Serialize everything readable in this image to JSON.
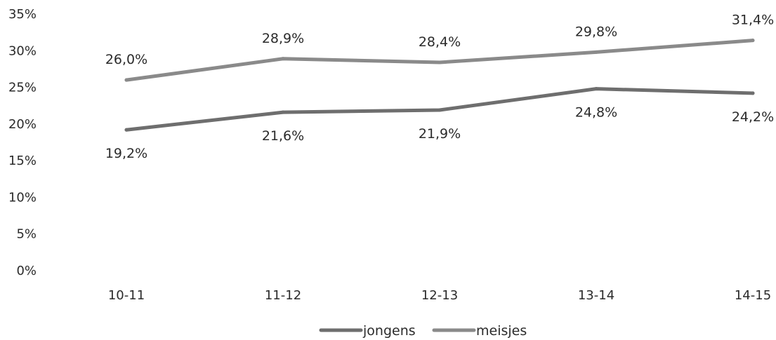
{
  "chart_data": {
    "type": "line",
    "title": "",
    "xlabel": "",
    "ylabel": "",
    "categories": [
      "10-11",
      "11-12",
      "12-13",
      "13-14",
      "14-15"
    ],
    "ylim": [
      0,
      35
    ],
    "yticks": [
      "0%",
      "5%",
      "10%",
      "15%",
      "20%",
      "25%",
      "30%",
      "35%"
    ],
    "grid": false,
    "legend_position": "bottom",
    "series": [
      {
        "name": "jongens",
        "values": [
          19.2,
          21.6,
          21.9,
          24.8,
          24.2
        ],
        "labels": [
          "19,2%",
          "21,6%",
          "21,9%",
          "24,8%",
          "24,2%"
        ],
        "color": "#6e6e6e"
      },
      {
        "name": "meisjes",
        "values": [
          26.0,
          28.9,
          28.4,
          29.8,
          31.4
        ],
        "labels": [
          "26,0%",
          "28,9%",
          "28,4%",
          "29,8%",
          "31,4%"
        ],
        "color": "#8a8a8a"
      }
    ]
  }
}
